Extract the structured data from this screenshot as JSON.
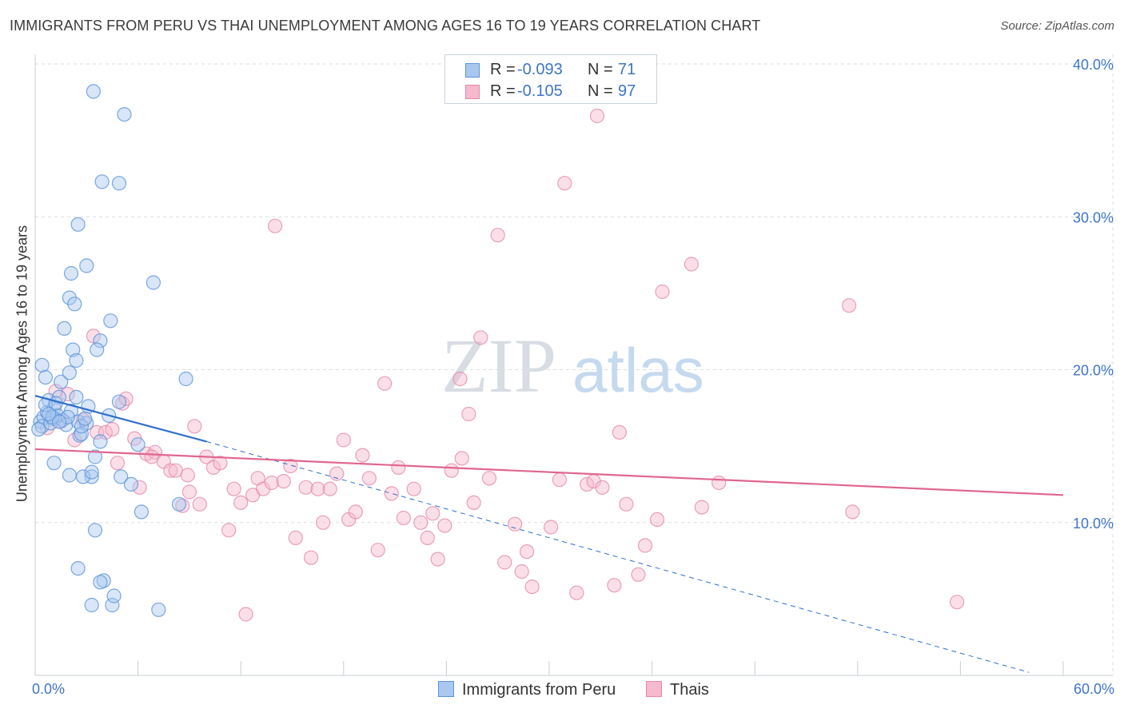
{
  "header": {
    "title": "IMMIGRANTS FROM PERU VS THAI UNEMPLOYMENT AMONG AGES 16 TO 19 YEARS CORRELATION CHART",
    "source": "Source: ZipAtlas.com"
  },
  "stats": {
    "r_label": "R = ",
    "n_label": "N = ",
    "rows": [
      {
        "r": "-0.093",
        "n": "71",
        "color": "#7fb0ea"
      },
      {
        "r": "-0.105",
        "n": "97",
        "color": "#f2a2bf"
      }
    ]
  },
  "watermark": {
    "zip": "ZIP",
    "atlas": "atlas"
  },
  "colors": {
    "blue_fill": "#a9c8f0",
    "blue_stroke": "#5b93d8",
    "blue_line": "#2f6fcb",
    "pink_fill": "#f6b9cd",
    "pink_stroke": "#e48aab",
    "pink_line": "#e0668f",
    "tick_text": "#3f75c7",
    "grid": "#d9dde3"
  },
  "chart_data": {
    "type": "scatter",
    "title": "IMMIGRANTS FROM PERU VS THAI UNEMPLOYMENT AMONG AGES 16 TO 19 YEARS CORRELATION CHART",
    "xlabel": "",
    "ylabel": "Unemployment Among Ages 16 to 19 years",
    "xlim": [
      0,
      60
    ],
    "ylim": [
      0,
      40
    ],
    "x_tick_labels": [
      "0.0%",
      "60.0%"
    ],
    "y_ticks": [
      10,
      20,
      30,
      40
    ],
    "y_tick_labels": [
      "10.0%",
      "20.0%",
      "30.0%",
      "40.0%"
    ],
    "legend": [
      "Immigrants from Peru",
      "Thais"
    ],
    "series": [
      {
        "name": "Immigrants from Peru",
        "color": "#7fb0ea",
        "r": -0.093,
        "n": 71,
        "trend": {
          "x0": 0,
          "y0": 18.3,
          "x1": 10,
          "y1": 15.3,
          "dashed_to_x": 58,
          "dashed_to_y": 0.2
        },
        "points": [
          [
            0.3,
            16.6
          ],
          [
            0.5,
            16.9
          ],
          [
            0.7,
            17.2
          ],
          [
            0.8,
            18.0
          ],
          [
            1.0,
            16.8
          ],
          [
            1.1,
            17.5
          ],
          [
            0.4,
            16.3
          ],
          [
            0.6,
            17.7
          ],
          [
            0.9,
            16.5
          ],
          [
            1.3,
            17.0
          ],
          [
            1.4,
            18.2
          ],
          [
            1.6,
            16.7
          ],
          [
            1.8,
            16.4
          ],
          [
            1.5,
            19.2
          ],
          [
            2.0,
            19.8
          ],
          [
            2.1,
            17.3
          ],
          [
            2.4,
            18.2
          ],
          [
            2.5,
            16.6
          ],
          [
            2.6,
            15.7
          ],
          [
            1.7,
            22.7
          ],
          [
            2.2,
            21.3
          ],
          [
            2.4,
            20.6
          ],
          [
            2.0,
            24.7
          ],
          [
            2.3,
            24.3
          ],
          [
            2.1,
            26.3
          ],
          [
            2.5,
            29.5
          ],
          [
            3.0,
            26.8
          ],
          [
            3.4,
            38.2
          ],
          [
            5.2,
            36.7
          ],
          [
            3.9,
            32.3
          ],
          [
            4.9,
            32.2
          ],
          [
            3.8,
            21.9
          ],
          [
            4.4,
            23.2
          ],
          [
            3.6,
            21.3
          ],
          [
            3.0,
            16.5
          ],
          [
            3.1,
            17.6
          ],
          [
            4.3,
            17.0
          ],
          [
            4.9,
            17.9
          ],
          [
            6.9,
            25.7
          ],
          [
            8.8,
            19.4
          ],
          [
            2.7,
            15.8
          ],
          [
            3.5,
            14.3
          ],
          [
            1.1,
            13.9
          ],
          [
            2.0,
            13.1
          ],
          [
            3.3,
            13.0
          ],
          [
            2.8,
            13.0
          ],
          [
            5.0,
            13.0
          ],
          [
            5.6,
            12.5
          ],
          [
            6.2,
            10.7
          ],
          [
            8.4,
            11.2
          ],
          [
            3.5,
            9.5
          ],
          [
            2.5,
            7.0
          ],
          [
            4.0,
            6.2
          ],
          [
            3.3,
            4.6
          ],
          [
            4.5,
            4.6
          ],
          [
            7.2,
            4.3
          ],
          [
            4.6,
            5.2
          ],
          [
            0.4,
            20.3
          ],
          [
            0.6,
            19.5
          ],
          [
            0.2,
            16.1
          ],
          [
            1.9,
            16.9
          ],
          [
            2.7,
            16.3
          ],
          [
            1.2,
            17.8
          ],
          [
            1.0,
            16.9
          ],
          [
            3.8,
            6.1
          ],
          [
            3.3,
            13.3
          ],
          [
            1.4,
            16.6
          ],
          [
            0.8,
            17.1
          ],
          [
            2.9,
            16.8
          ],
          [
            6.0,
            15.1
          ],
          [
            3.8,
            15.3
          ]
        ]
      },
      {
        "name": "Thais",
        "color": "#f2a2bf",
        "r": -0.105,
        "n": 97,
        "trend": {
          "x0": 0,
          "y0": 14.8,
          "x1": 60,
          "y1": 11.8
        },
        "points": [
          [
            0.7,
            16.2
          ],
          [
            1.5,
            16.6
          ],
          [
            1.9,
            18.4
          ],
          [
            2.3,
            15.4
          ],
          [
            3.4,
            22.2
          ],
          [
            3.6,
            15.9
          ],
          [
            4.1,
            15.9
          ],
          [
            4.5,
            16.1
          ],
          [
            4.8,
            13.9
          ],
          [
            5.1,
            17.8
          ],
          [
            5.3,
            18.1
          ],
          [
            5.8,
            15.5
          ],
          [
            6.1,
            12.3
          ],
          [
            6.5,
            14.5
          ],
          [
            7.0,
            14.6
          ],
          [
            7.5,
            14.0
          ],
          [
            7.9,
            13.4
          ],
          [
            8.2,
            13.4
          ],
          [
            8.6,
            11.1
          ],
          [
            9.0,
            12.0
          ],
          [
            9.3,
            16.3
          ],
          [
            9.6,
            11.2
          ],
          [
            10.0,
            14.3
          ],
          [
            10.4,
            13.6
          ],
          [
            10.8,
            13.9
          ],
          [
            11.3,
            9.5
          ],
          [
            11.6,
            12.2
          ],
          [
            12.0,
            11.3
          ],
          [
            12.3,
            4.0
          ],
          [
            12.7,
            11.8
          ],
          [
            13.0,
            12.9
          ],
          [
            13.3,
            12.2
          ],
          [
            13.8,
            12.6
          ],
          [
            14.0,
            29.4
          ],
          [
            14.5,
            12.7
          ],
          [
            14.9,
            13.7
          ],
          [
            15.2,
            9.0
          ],
          [
            15.8,
            12.3
          ],
          [
            16.1,
            7.7
          ],
          [
            16.5,
            12.2
          ],
          [
            16.8,
            10.0
          ],
          [
            17.2,
            12.2
          ],
          [
            17.6,
            13.2
          ],
          [
            18.0,
            15.4
          ],
          [
            18.3,
            10.2
          ],
          [
            18.7,
            10.7
          ],
          [
            19.1,
            14.4
          ],
          [
            19.5,
            12.9
          ],
          [
            20.0,
            8.2
          ],
          [
            20.4,
            19.1
          ],
          [
            20.8,
            11.9
          ],
          [
            21.2,
            13.6
          ],
          [
            21.5,
            10.3
          ],
          [
            22.1,
            12.2
          ],
          [
            22.5,
            10.0
          ],
          [
            22.9,
            9.0
          ],
          [
            23.2,
            10.6
          ],
          [
            23.5,
            7.6
          ],
          [
            24.3,
            13.4
          ],
          [
            24.8,
            19.4
          ],
          [
            24.9,
            14.2
          ],
          [
            25.3,
            17.1
          ],
          [
            25.6,
            11.3
          ],
          [
            26.0,
            22.1
          ],
          [
            26.5,
            12.9
          ],
          [
            27.0,
            28.8
          ],
          [
            27.4,
            7.4
          ],
          [
            28.0,
            9.9
          ],
          [
            28.4,
            6.8
          ],
          [
            28.7,
            8.1
          ],
          [
            29.0,
            5.8
          ],
          [
            30.1,
            9.7
          ],
          [
            30.6,
            12.8
          ],
          [
            30.9,
            32.2
          ],
          [
            31.6,
            5.4
          ],
          [
            32.2,
            12.5
          ],
          [
            32.6,
            12.7
          ],
          [
            32.8,
            36.6
          ],
          [
            33.1,
            12.3
          ],
          [
            33.8,
            5.9
          ],
          [
            34.1,
            15.9
          ],
          [
            34.5,
            11.2
          ],
          [
            35.2,
            6.6
          ],
          [
            35.6,
            8.5
          ],
          [
            36.3,
            10.2
          ],
          [
            36.6,
            25.1
          ],
          [
            38.3,
            26.9
          ],
          [
            38.9,
            11.0
          ],
          [
            39.9,
            12.6
          ],
          [
            47.5,
            24.2
          ],
          [
            47.7,
            10.7
          ],
          [
            53.8,
            4.8
          ],
          [
            1.2,
            18.6
          ],
          [
            2.8,
            16.7
          ],
          [
            6.8,
            14.3
          ],
          [
            8.9,
            13.1
          ],
          [
            23.9,
            9.8
          ]
        ]
      }
    ]
  }
}
